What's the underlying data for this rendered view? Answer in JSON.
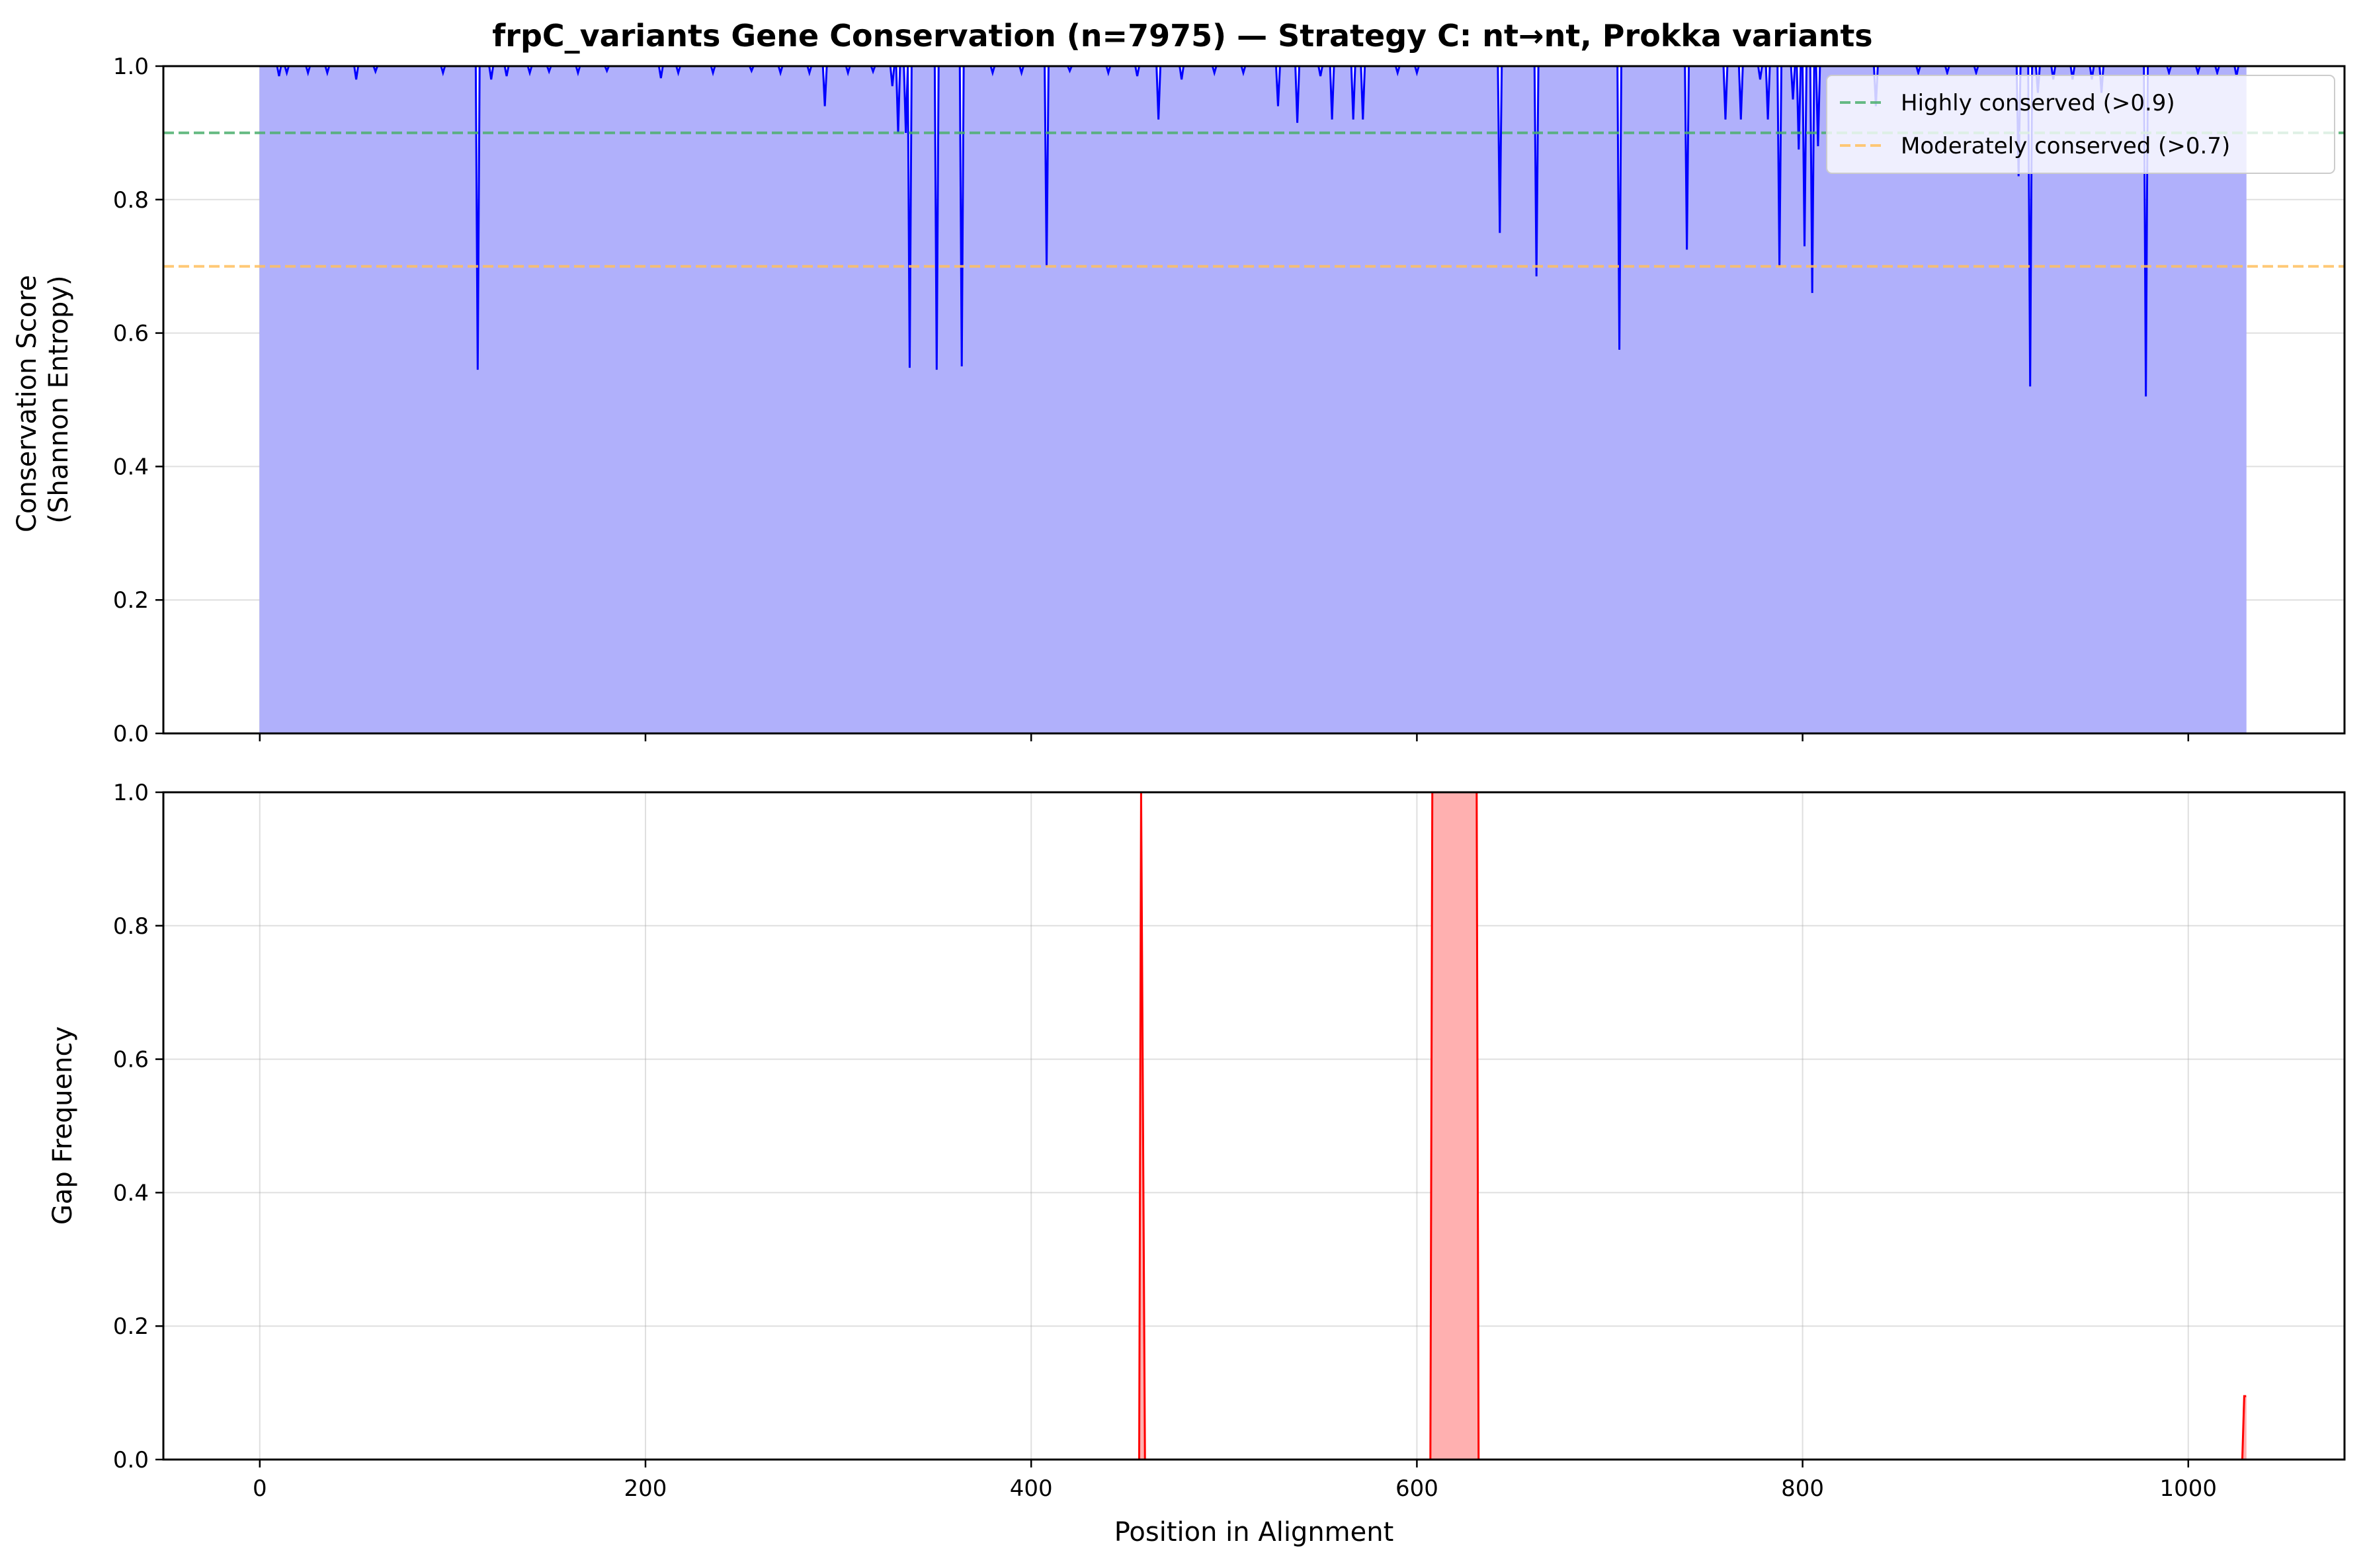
{
  "chart_data": [
    {
      "type": "area",
      "title": "frpC_variants Gene Conservation (n=7975) — Strategy C: nt→nt, Prokka variants",
      "xlabel": "",
      "ylabel": [
        "Conservation Score",
        "(Shannon Entropy)"
      ],
      "xlim": [
        -50,
        1081
      ],
      "ylim": [
        0,
        1
      ],
      "xticks": [
        0,
        200,
        400,
        600,
        800,
        1000
      ],
      "yticks": [
        "0.0",
        "0.2",
        "0.4",
        "0.6",
        "0.8",
        "1.0"
      ],
      "grid": true,
      "legend_position": "top-right",
      "line_color": "#0000ff",
      "fill_color": "#b0b0fb",
      "baseline_value": 1.0,
      "x_range": [
        0,
        1030
      ],
      "dips": [
        [
          10,
          0.985
        ],
        [
          14,
          0.99
        ],
        [
          25,
          0.99
        ],
        [
          35,
          0.99
        ],
        [
          50,
          0.98
        ],
        [
          60,
          0.992
        ],
        [
          95,
          0.99
        ],
        [
          113,
          0.545
        ],
        [
          120,
          0.98
        ],
        [
          128,
          0.985
        ],
        [
          140,
          0.99
        ],
        [
          150,
          0.992
        ],
        [
          165,
          0.99
        ],
        [
          180,
          0.993
        ],
        [
          208,
          0.982
        ],
        [
          217,
          0.99
        ],
        [
          235,
          0.99
        ],
        [
          255,
          0.993
        ],
        [
          270,
          0.99
        ],
        [
          285,
          0.99
        ],
        [
          293,
          0.94
        ],
        [
          305,
          0.99
        ],
        [
          318,
          0.992
        ],
        [
          328,
          0.97
        ],
        [
          331,
          0.9
        ],
        [
          335,
          0.9
        ],
        [
          337,
          0.548
        ],
        [
          351,
          0.545
        ],
        [
          364,
          0.55
        ],
        [
          380,
          0.99
        ],
        [
          395,
          0.99
        ],
        [
          408,
          0.7
        ],
        [
          420,
          0.993
        ],
        [
          440,
          0.99
        ],
        [
          455,
          0.985
        ],
        [
          466,
          0.92
        ],
        [
          478,
          0.98
        ],
        [
          495,
          0.99
        ],
        [
          510,
          0.99
        ],
        [
          528,
          0.94
        ],
        [
          538,
          0.915
        ],
        [
          550,
          0.985
        ],
        [
          556,
          0.92
        ],
        [
          567,
          0.92
        ],
        [
          572,
          0.92
        ],
        [
          590,
          0.99
        ],
        [
          600,
          0.99
        ],
        [
          643,
          0.75
        ],
        [
          662,
          0.685
        ],
        [
          705,
          0.575
        ],
        [
          740,
          0.725
        ],
        [
          760,
          0.92
        ],
        [
          768,
          0.92
        ],
        [
          778,
          0.98
        ],
        [
          782,
          0.92
        ],
        [
          788,
          0.7
        ],
        [
          795,
          0.95
        ],
        [
          798,
          0.875
        ],
        [
          801,
          0.73
        ],
        [
          805,
          0.66
        ],
        [
          808,
          0.88
        ],
        [
          838,
          0.94
        ],
        [
          860,
          0.99
        ],
        [
          875,
          0.99
        ],
        [
          890,
          0.99
        ],
        [
          912,
          0.835
        ],
        [
          918,
          0.52
        ],
        [
          922,
          0.96
        ],
        [
          930,
          0.98
        ],
        [
          940,
          0.98
        ],
        [
          950,
          0.98
        ],
        [
          955,
          0.96
        ],
        [
          978,
          0.505
        ],
        [
          990,
          0.99
        ],
        [
          1005,
          0.99
        ],
        [
          1015,
          0.99
        ],
        [
          1025,
          0.985
        ]
      ],
      "reference_lines": [
        {
          "name": "Highly conserved (>0.9)",
          "y": 0.9,
          "color": "#4caf6e",
          "style": "dashed"
        },
        {
          "name": "Moderately conserved (>0.7)",
          "y": 0.7,
          "color": "#ffbf5e",
          "style": "dashed"
        }
      ]
    },
    {
      "type": "area",
      "title": "",
      "xlabel": "Position in Alignment",
      "ylabel": [
        "Gap Frequency"
      ],
      "xlim": [
        -50,
        1081
      ],
      "ylim": [
        0,
        1
      ],
      "xticks": [
        0,
        200,
        400,
        600,
        800,
        1000
      ],
      "yticks": [
        "0.0",
        "0.2",
        "0.4",
        "0.6",
        "0.8",
        "1.0"
      ],
      "grid": true,
      "line_color": "#ff0000",
      "fill_color": "#ffb0b0",
      "x_range": [
        0,
        1030
      ],
      "points": [
        [
          0,
          0.0
        ],
        [
          456,
          0.0
        ],
        [
          457,
          1.0
        ],
        [
          459,
          0.0
        ],
        [
          607,
          0.0
        ],
        [
          608,
          1.0
        ],
        [
          631,
          1.0
        ],
        [
          632,
          0.0
        ],
        [
          1028,
          0.0
        ],
        [
          1029,
          0.095
        ],
        [
          1030,
          0.095
        ]
      ]
    }
  ]
}
